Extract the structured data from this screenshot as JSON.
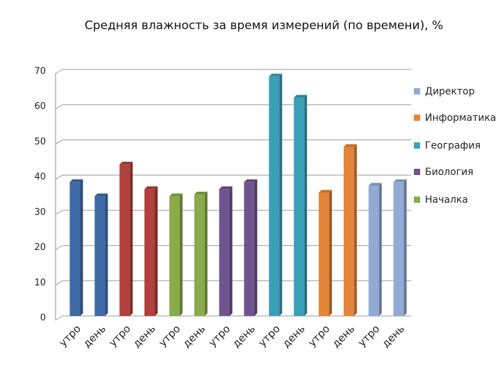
{
  "chart_data": {
    "type": "bar",
    "title": "Средняя влажность за время измерений (по времени), %",
    "categories": [
      "утро",
      "день",
      "утро",
      "день",
      "утро",
      "день",
      "утро",
      "день",
      "утро",
      "день",
      "утро",
      "день",
      "утро",
      "день"
    ],
    "values": [
      38,
      34,
      43,
      36,
      34,
      34.5,
      36,
      38,
      68,
      62,
      35,
      48,
      37,
      38
    ],
    "colors": [
      "#3f6aa6",
      "#3f6aa6",
      "#b0413e",
      "#b0413e",
      "#8aab4a",
      "#8aab4a",
      "#6e558f",
      "#6e558f",
      "#3aa0b8",
      "#3aa0b8",
      "#e3863a",
      "#e3863a",
      "#92aad4",
      "#92aad4"
    ],
    "legend": [
      {
        "name": "Директор",
        "color": "#92aad4"
      },
      {
        "name": "Информатика",
        "color": "#e3863a"
      },
      {
        "name": "География",
        "color": "#3aa0b8"
      },
      {
        "name": "Биология",
        "color": "#6e558f"
      },
      {
        "name": "Началка",
        "color": "#8aab4a"
      }
    ],
    "ylim": [
      0,
      70
    ],
    "yticks": [
      0,
      10,
      20,
      30,
      40,
      50,
      60,
      70
    ],
    "grid": true
  }
}
